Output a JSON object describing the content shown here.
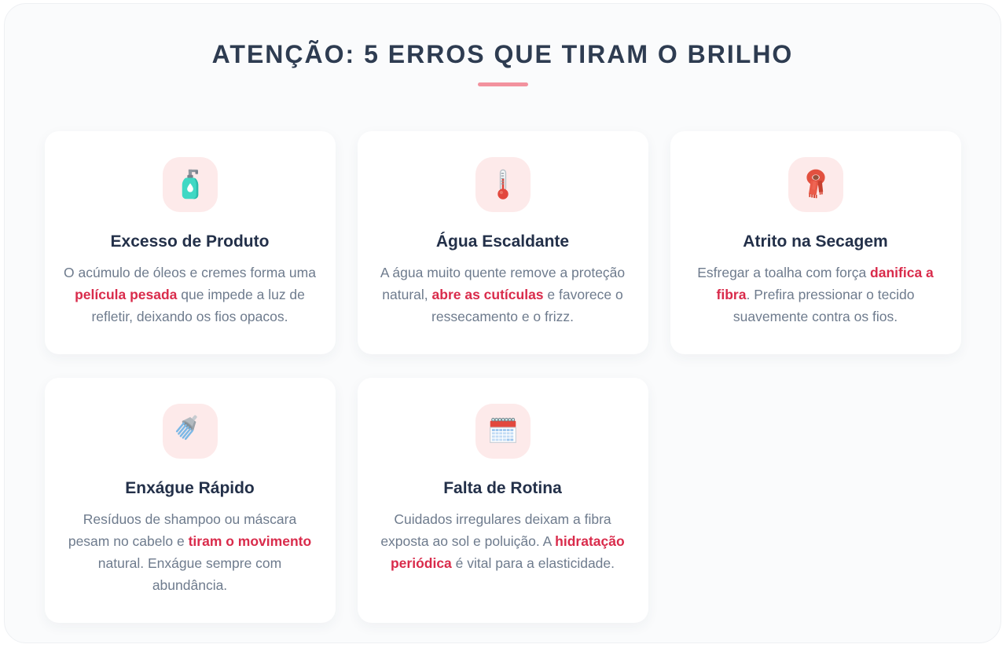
{
  "page": {
    "title": "ATENÇÃO: 5 ERROS QUE TIRAM O BRILHO"
  },
  "palette": {
    "title_text": "#2e3c51",
    "accent_underline": "#f2929e",
    "card_background": "#ffffff",
    "panel_background": "#fafbfc",
    "icon_tile_background": "#fdeaea",
    "body_text": "#6e7b8d",
    "highlight_text": "#d92b4b"
  },
  "cards": [
    {
      "icon": "lotion-bottle-icon",
      "title": "Excesso de Produto",
      "description": [
        {
          "text": "O acúmulo de óleos e cremes forma uma "
        },
        {
          "text": "película pesada",
          "highlight": true
        },
        {
          "text": " que impede a luz de refletir, deixando os fios opacos."
        }
      ]
    },
    {
      "icon": "thermometer-icon",
      "title": "Água Escaldante",
      "description": [
        {
          "text": "A água muito quente remove a proteção natural, "
        },
        {
          "text": "abre as cutículas",
          "highlight": true
        },
        {
          "text": " e favorece o ressecamento e o frizz."
        }
      ]
    },
    {
      "icon": "scarf-icon",
      "title": "Atrito na Secagem",
      "description": [
        {
          "text": "Esfregar a toalha com força "
        },
        {
          "text": "danifica a fibra",
          "highlight": true
        },
        {
          "text": ". Prefira pressionar o tecido suavemente contra os fios."
        }
      ]
    },
    {
      "icon": "shower-icon",
      "title": "Enxágue Rápido",
      "description": [
        {
          "text": "Resíduos de shampoo ou máscara pesam no cabelo e "
        },
        {
          "text": "tiram o movimento",
          "highlight": true
        },
        {
          "text": " natural. Enxágue sempre com abundância."
        }
      ]
    },
    {
      "icon": "calendar-icon",
      "title": "Falta de Rotina",
      "description": [
        {
          "text": "Cuidados irregulares deixam a fibra exposta ao sol e poluição. A "
        },
        {
          "text": "hidratação periódica",
          "highlight": true
        },
        {
          "text": " é vital para a elasticidade."
        }
      ]
    }
  ]
}
